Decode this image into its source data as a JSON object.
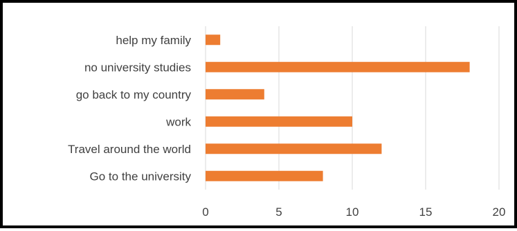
{
  "colors": {
    "bar": "#ED7D31",
    "grid": "#D9D9D9",
    "text": "#404040",
    "frame": "#000000"
  },
  "chart_data": {
    "type": "bar",
    "orientation": "horizontal",
    "categories": [
      "help my family",
      "no university studies",
      "go back to my country",
      "work",
      "Travel around the world",
      "Go to the university"
    ],
    "values": [
      1,
      18,
      4,
      10,
      12,
      8
    ],
    "xlim": [
      0,
      20
    ],
    "xticks": [
      "0",
      "5",
      "10",
      "15",
      "20"
    ],
    "grid": "vertical",
    "legend": "none"
  }
}
